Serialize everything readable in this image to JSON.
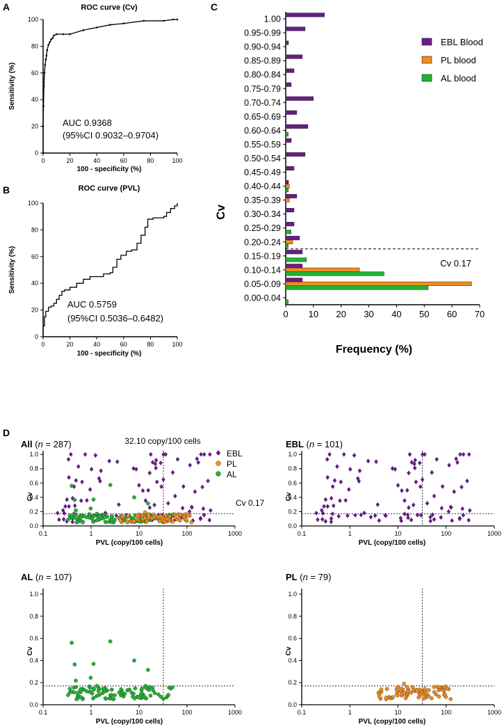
{
  "panels": {
    "a": "A",
    "b": "B",
    "c": "C",
    "d": "D"
  },
  "colors": {
    "ebl": "#6a1b8a",
    "pl": "#f28c1e",
    "al": "#1eb432",
    "axis": "#000000"
  },
  "chart_data": [
    {
      "type": "line",
      "title": "ROC curve (Cv)",
      "xlabel": "100 - specificity (%)",
      "ylabel": "Sensitivity (%)",
      "xlim": [
        0,
        100
      ],
      "ylim": [
        0,
        100
      ],
      "xticks": [
        0,
        20,
        40,
        60,
        80,
        100
      ],
      "yticks": [
        0,
        20,
        40,
        60,
        80,
        100
      ],
      "annotations": [
        "AUC 0.9368",
        "(95%CI 0.9032–0.9704)"
      ],
      "x": [
        0,
        0,
        0.3,
        0.6,
        1,
        1.5,
        2,
        2.5,
        3,
        4,
        5,
        6,
        7,
        8,
        10,
        15,
        20,
        30,
        40,
        50,
        60,
        75,
        90,
        97,
        100
      ],
      "y": [
        0,
        20,
        35,
        50,
        60,
        66,
        70,
        73,
        77,
        81,
        83,
        85,
        86,
        88,
        89,
        89,
        89,
        92,
        94,
        96,
        97,
        99,
        99,
        100,
        100
      ]
    },
    {
      "type": "line",
      "title": "ROC curve (PVL)",
      "xlabel": "100 - specificity (%)",
      "ylabel": "Sensitivity (%)",
      "xlim": [
        0,
        100
      ],
      "ylim": [
        0,
        100
      ],
      "xticks": [
        0,
        20,
        40,
        60,
        80,
        100
      ],
      "yticks": [
        0,
        20,
        40,
        60,
        80,
        100
      ],
      "annotations": [
        "AUC 0.5759",
        "(95%CI 0.5036–0.6482)"
      ],
      "x": [
        0,
        0,
        1,
        2,
        4,
        6,
        8,
        10,
        12,
        14,
        16,
        20,
        25,
        30,
        35,
        40,
        45,
        50,
        52,
        55,
        58,
        62,
        66,
        70,
        73,
        76,
        78,
        82,
        86,
        90,
        92,
        95,
        98,
        100
      ],
      "y": [
        0,
        8,
        15,
        19,
        22,
        23,
        25,
        28,
        31,
        34,
        35,
        37,
        40,
        43,
        45,
        45,
        47,
        48,
        52,
        58,
        61,
        64,
        65,
        70,
        76,
        82,
        88,
        89,
        89,
        90,
        93,
        96,
        98,
        100
      ]
    },
    {
      "type": "bar",
      "orientation": "horizontal",
      "title": "",
      "xlabel": "Frequency (%)",
      "ylabel": "Cv",
      "xlim": [
        0,
        70
      ],
      "xticks": [
        0,
        10,
        20,
        30,
        40,
        50,
        60,
        70
      ],
      "categories": [
        "1.00",
        "0.95-0.99",
        "0.90-0.94",
        "0.85-0.89",
        "0.80-0.84",
        "0.75-0.79",
        "0.70-0.74",
        "0.65-0.69",
        "0.60-0.64",
        "0.55-0.59",
        "0.50-0.54",
        "0.45-0.49",
        "0.40-0.44",
        "0.35-0.39",
        "0.30-0.34",
        "0.25-0.29",
        "0.20-0.24",
        "0.15-0.19",
        "0.10-0.14",
        "0.05-0.09",
        "0.00-0.04"
      ],
      "series": [
        {
          "name": "EBL Blood",
          "color": "#6a1b8a",
          "values": [
            14,
            7,
            1,
            6,
            3,
            2,
            10,
            4,
            8,
            2,
            7,
            3,
            1,
            4,
            3,
            3,
            5,
            6,
            6,
            6,
            0
          ]
        },
        {
          "name": "PL blood",
          "color": "#f28c1e",
          "values": [
            0,
            0,
            0,
            0,
            0,
            0,
            0,
            0,
            0,
            0,
            0,
            0,
            1.3,
            1.3,
            0,
            0,
            2.5,
            0,
            26.6,
            67.1,
            0
          ]
        },
        {
          "name": "AL blood",
          "color": "#1eb432",
          "values": [
            0,
            0,
            0,
            0,
            0,
            0,
            0,
            0,
            0.9,
            0,
            0,
            0,
            0.9,
            0,
            0,
            1.9,
            0.9,
            7.5,
            35.5,
            51.4,
            0.9
          ]
        }
      ],
      "threshold_between": [
        "0.15-0.19",
        "0.20-0.24"
      ],
      "legend": "top-right",
      "annotations": [
        "Cv 0.17"
      ]
    },
    {
      "type": "scatter",
      "title_group": "All",
      "title_open": " (",
      "title_n_symbol": "n",
      "title_n": " = 287)",
      "xlabel": "PVL (copy/100 cells)",
      "ylabel": "Cv",
      "xscale": "log",
      "xlim": [
        0.1,
        1000
      ],
      "ylim": [
        0,
        1.05
      ],
      "xticks": [
        "0.1",
        "1",
        "10",
        "100",
        "1000"
      ],
      "yticks": [
        "0.0",
        "0.2",
        "0.4",
        "0.6",
        "0.8",
        "1.0"
      ],
      "threshold_x": 32.1,
      "threshold_y": 0.17,
      "legend": [
        "EBL",
        "PL",
        "AL"
      ],
      "annotations": [
        "32.10 copy/100 cells",
        "Cv 0.17"
      ]
    },
    {
      "type": "scatter",
      "title_group": "EBL",
      "title_open": " (",
      "title_n_symbol": "n",
      "title_n": " = 101)",
      "xlabel": "PVL (copy/100 cells)",
      "ylabel": "Cv",
      "xscale": "log",
      "xlim": [
        0.1,
        1000
      ],
      "ylim": [
        0,
        1.05
      ],
      "xticks": [
        "0.1",
        "1",
        "10",
        "100",
        "1000"
      ],
      "yticks": [
        "0.0",
        "0.2",
        "0.4",
        "0.6",
        "0.8",
        "1.0"
      ],
      "threshold_x": 32.1,
      "threshold_y": 0.17
    },
    {
      "type": "scatter",
      "title_group": "AL",
      "title_open": " (",
      "title_n_symbol": "n",
      "title_n": " = 107)",
      "xlabel": "PVL (copy/100 cells)",
      "ylabel": "Cv",
      "xscale": "log",
      "xlim": [
        0.1,
        1000
      ],
      "ylim": [
        0,
        1.05
      ],
      "xticks": [
        "0.1",
        "1",
        "10",
        "100",
        "1000"
      ],
      "yticks": [
        "0.0",
        "0.2",
        "0.4",
        "0.6",
        "0.8",
        "1.0"
      ],
      "threshold_x": 32.1,
      "threshold_y": 0.17
    },
    {
      "type": "scatter",
      "title_group": "PL",
      "title_open": " (",
      "title_n_symbol": "n",
      "title_n": " = 79)",
      "xlabel": "PVL  (copy/100 cells)",
      "ylabel": "Cv",
      "xscale": "log",
      "xlim": [
        0.1,
        1000
      ],
      "ylim": [
        0,
        1.05
      ],
      "xticks": [
        "0.1",
        "1",
        "10",
        "100",
        "1000"
      ],
      "yticks": [
        "0.0",
        "0.2",
        "0.4",
        "0.6",
        "0.8",
        "1.0"
      ],
      "threshold_x": 32.1,
      "threshold_y": 0.17
    }
  ]
}
